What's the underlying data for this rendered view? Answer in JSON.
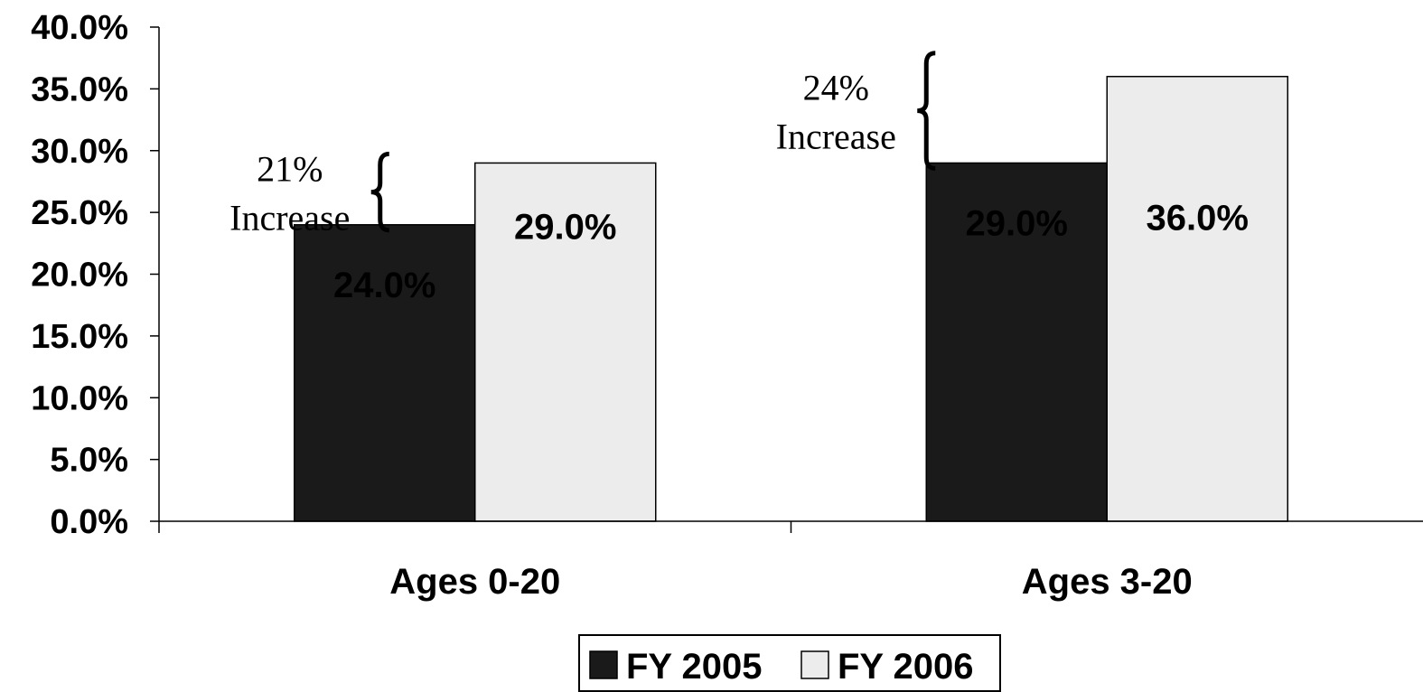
{
  "chart_data": {
    "type": "bar",
    "categories": [
      "Ages 0-20",
      "Ages 3-20"
    ],
    "series": [
      {
        "name": "FY 2005",
        "values": [
          24.0,
          29.0
        ],
        "color": "#1a1a1a",
        "labels": [
          "24.0%",
          "29.0%"
        ]
      },
      {
        "name": "FY 2006",
        "values": [
          29.0,
          36.0
        ],
        "color": "#ececec",
        "labels": [
          "29.0%",
          "36.0%"
        ]
      }
    ],
    "ylim": [
      0,
      40
    ],
    "yticks": [
      0,
      5,
      10,
      15,
      20,
      25,
      30,
      35,
      40
    ],
    "ytick_labels": [
      "0.0%",
      "5.0%",
      "10.0%",
      "15.0%",
      "20.0%",
      "25.0%",
      "30.0%",
      "35.0%",
      "40.0%"
    ],
    "annotations": [
      {
        "line1": "21%",
        "line2": "Increase",
        "category": "Ages 0-20",
        "from": 24.0,
        "to": 29.0
      },
      {
        "line1": "24%",
        "line2": "Increase",
        "category": "Ages 3-20",
        "from": 29.0,
        "to": 36.0
      }
    ],
    "legend": {
      "position": "bottom-center",
      "entries": [
        "FY 2005",
        "FY 2006"
      ]
    },
    "grid": false
  }
}
